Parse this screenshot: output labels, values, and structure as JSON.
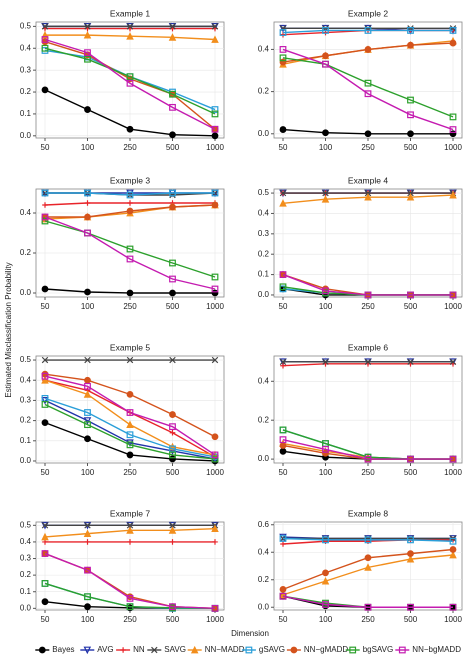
{
  "ylabel": "Estimated Misclassification Probability",
  "xlabel": "Dimension",
  "chart_data": [
    {
      "type": "line",
      "title": "Example 1",
      "categories": [
        "50",
        "100",
        "250",
        "500",
        "1000"
      ],
      "ylim": [
        -0.01,
        0.52
      ],
      "yticks": [
        {
          "value": 0,
          "label": "0.0"
        },
        0.1,
        0.2,
        0.3,
        0.4,
        0.5
      ],
      "grid": true,
      "series": [
        {
          "name": "Bayes",
          "color": "#000000",
          "marker": "circle",
          "values": [
            0.21,
            0.12,
            0.03,
            0.005,
            0
          ]
        },
        {
          "name": "AVG",
          "color": "#2233aa",
          "marker": "triangle-down",
          "values": [
            0.5,
            0.5,
            0.5,
            0.5,
            0.5
          ]
        },
        {
          "name": "NN",
          "color": "#e8242a",
          "marker": "plus",
          "values": [
            0.49,
            0.49,
            0.49,
            0.49,
            0.49
          ]
        },
        {
          "name": "SAVG",
          "color": "#444444",
          "marker": "cross",
          "values": [
            0.5,
            0.5,
            0.5,
            0.5,
            0.5
          ]
        },
        {
          "name": "NN−MADD",
          "color": "#f28e1c",
          "marker": "triangle-up",
          "values": [
            0.46,
            0.46,
            0.455,
            0.45,
            0.44
          ]
        },
        {
          "name": "gSAVG",
          "color": "#2b9fd9",
          "marker": "square",
          "values": [
            0.39,
            0.36,
            0.27,
            0.2,
            0.12
          ]
        },
        {
          "name": "NN−gMADD",
          "color": "#d4531c",
          "marker": "circle",
          "values": [
            0.43,
            0.37,
            0.26,
            0.19,
            0.03
          ]
        },
        {
          "name": "bgSAVG",
          "color": "#2ca02c",
          "marker": "square",
          "values": [
            0.4,
            0.35,
            0.27,
            0.19,
            0.1
          ]
        },
        {
          "name": "NN−bgMADD",
          "color": "#c41bb0",
          "marker": "square",
          "values": [
            0.44,
            0.38,
            0.24,
            0.13,
            0.03
          ]
        }
      ]
    },
    {
      "type": "line",
      "title": "Example 2",
      "categories": [
        "50",
        "100",
        "250",
        "500",
        "1000"
      ],
      "ylim": [
        -0.02,
        0.53
      ],
      "yticks": [
        {
          "value": 0,
          "label": "0.0"
        },
        0.2,
        0.4
      ],
      "grid": true,
      "series": [
        {
          "name": "Bayes",
          "color": "#000000",
          "marker": "circle",
          "values": [
            0.02,
            0.005,
            0,
            0,
            0
          ]
        },
        {
          "name": "AVG",
          "color": "#2233aa",
          "marker": "triangle-down",
          "values": [
            0.5,
            0.5,
            0.5,
            0.49,
            0.49
          ]
        },
        {
          "name": "NN",
          "color": "#e8242a",
          "marker": "plus",
          "values": [
            0.47,
            0.48,
            0.49,
            0.49,
            0.49
          ]
        },
        {
          "name": "SAVG",
          "color": "#444444",
          "marker": "cross",
          "values": [
            0.5,
            0.5,
            0.5,
            0.5,
            0.5
          ]
        },
        {
          "name": "NN−MADD",
          "color": "#f28e1c",
          "marker": "triangle-up",
          "values": [
            0.33,
            0.37,
            0.4,
            0.42,
            0.44
          ]
        },
        {
          "name": "gSAVG",
          "color": "#2b9fd9",
          "marker": "square",
          "values": [
            0.48,
            0.49,
            0.49,
            0.49,
            0.49
          ]
        },
        {
          "name": "NN−gMADD",
          "color": "#d4531c",
          "marker": "circle",
          "values": [
            0.34,
            0.37,
            0.4,
            0.42,
            0.43
          ]
        },
        {
          "name": "bgSAVG",
          "color": "#2ca02c",
          "marker": "square",
          "values": [
            0.36,
            0.33,
            0.24,
            0.16,
            0.08
          ]
        },
        {
          "name": "NN−bgMADD",
          "color": "#c41bb0",
          "marker": "square",
          "values": [
            0.4,
            0.33,
            0.19,
            0.09,
            0.02
          ]
        }
      ]
    },
    {
      "type": "line",
      "title": "Example 3",
      "categories": [
        "50",
        "100",
        "250",
        "500",
        "1000"
      ],
      "ylim": [
        -0.02,
        0.52
      ],
      "yticks": [
        {
          "value": 0,
          "label": "0.0"
        },
        0.2,
        0.4
      ],
      "grid": true,
      "series": [
        {
          "name": "Bayes",
          "color": "#000000",
          "marker": "circle",
          "values": [
            0.02,
            0.005,
            0,
            0,
            0
          ]
        },
        {
          "name": "AVG",
          "color": "#2233aa",
          "marker": "triangle-down",
          "values": [
            0.5,
            0.5,
            0.5,
            0.5,
            0.5
          ]
        },
        {
          "name": "NN",
          "color": "#e8242a",
          "marker": "plus",
          "values": [
            0.44,
            0.45,
            0.45,
            0.45,
            0.45
          ]
        },
        {
          "name": "SAVG",
          "color": "#444444",
          "marker": "cross",
          "values": [
            0.5,
            0.5,
            0.49,
            0.49,
            0.5
          ]
        },
        {
          "name": "NN−MADD",
          "color": "#f28e1c",
          "marker": "triangle-up",
          "values": [
            0.37,
            0.38,
            0.4,
            0.43,
            0.44
          ]
        },
        {
          "name": "gSAVG",
          "color": "#2b9fd9",
          "marker": "square",
          "values": [
            0.5,
            0.5,
            0.49,
            0.5,
            0.5
          ]
        },
        {
          "name": "NN−gMADD",
          "color": "#d4531c",
          "marker": "circle",
          "values": [
            0.38,
            0.38,
            0.41,
            0.43,
            0.44
          ]
        },
        {
          "name": "bgSAVG",
          "color": "#2ca02c",
          "marker": "square",
          "values": [
            0.36,
            0.3,
            0.22,
            0.15,
            0.08
          ]
        },
        {
          "name": "NN−bgMADD",
          "color": "#c41bb0",
          "marker": "square",
          "values": [
            0.38,
            0.3,
            0.17,
            0.07,
            0.02
          ]
        }
      ]
    },
    {
      "type": "line",
      "title": "Example 4",
      "categories": [
        "50",
        "100",
        "250",
        "500",
        "1000"
      ],
      "ylim": [
        -0.01,
        0.52
      ],
      "yticks": [
        {
          "value": 0,
          "label": "0.0"
        },
        0.1,
        0.2,
        0.3,
        0.4,
        0.5
      ],
      "grid": true,
      "series": [
        {
          "name": "Bayes",
          "color": "#000000",
          "marker": "circle",
          "values": [
            0.03,
            0,
            0,
            0,
            0
          ]
        },
        {
          "name": "AVG",
          "color": "#2233aa",
          "marker": "triangle-down",
          "values": [
            0.5,
            0.5,
            0.5,
            0.5,
            0.5
          ]
        },
        {
          "name": "NN",
          "color": "#e8242a",
          "marker": "plus",
          "values": [
            0.5,
            0.5,
            0.5,
            0.5,
            0.5
          ]
        },
        {
          "name": "SAVG",
          "color": "#444444",
          "marker": "cross",
          "values": [
            0.5,
            0.5,
            0.5,
            0.5,
            0.5
          ]
        },
        {
          "name": "NN−MADD",
          "color": "#f28e1c",
          "marker": "triangle-up",
          "values": [
            0.45,
            0.47,
            0.48,
            0.48,
            0.49
          ]
        },
        {
          "name": "gSAVG",
          "color": "#2b9fd9",
          "marker": "square",
          "values": [
            0.03,
            0.01,
            0,
            0,
            0
          ]
        },
        {
          "name": "NN−gMADD",
          "color": "#d4531c",
          "marker": "circle",
          "values": [
            0.1,
            0.03,
            0,
            0,
            0
          ]
        },
        {
          "name": "bgSAVG",
          "color": "#2ca02c",
          "marker": "square",
          "values": [
            0.04,
            0.01,
            0,
            0,
            0
          ]
        },
        {
          "name": "NN−bgMADD",
          "color": "#c41bb0",
          "marker": "square",
          "values": [
            0.1,
            0.02,
            0,
            0,
            0
          ]
        }
      ]
    },
    {
      "type": "line",
      "title": "Example 5",
      "categories": [
        "50",
        "100",
        "250",
        "500",
        "1000"
      ],
      "ylim": [
        -0.01,
        0.52
      ],
      "yticks": [
        {
          "value": 0,
          "label": "0.0"
        },
        0.1,
        0.2,
        0.3,
        0.4,
        0.5
      ],
      "grid": true,
      "series": [
        {
          "name": "Bayes",
          "color": "#000000",
          "marker": "circle",
          "values": [
            0.19,
            0.11,
            0.03,
            0.01,
            0
          ]
        },
        {
          "name": "AVG",
          "color": "#2233aa",
          "marker": "triangle-down",
          "values": [
            0.3,
            0.2,
            0.09,
            0.05,
            0.01
          ]
        },
        {
          "name": "NN",
          "color": "#e8242a",
          "marker": "plus",
          "values": [
            0.4,
            0.35,
            0.24,
            0.14,
            0.02
          ]
        },
        {
          "name": "SAVG",
          "color": "#444444",
          "marker": "cross",
          "values": [
            0.5,
            0.5,
            0.5,
            0.5,
            0.5
          ]
        },
        {
          "name": "NN−MADD",
          "color": "#f28e1c",
          "marker": "triangle-up",
          "values": [
            0.4,
            0.33,
            0.18,
            0.07,
            0.03
          ]
        },
        {
          "name": "gSAVG",
          "color": "#2b9fd9",
          "marker": "square",
          "values": [
            0.31,
            0.24,
            0.13,
            0.06,
            0.02
          ]
        },
        {
          "name": "NN−gMADD",
          "color": "#d4531c",
          "marker": "circle",
          "values": [
            0.43,
            0.4,
            0.33,
            0.23,
            0.12
          ]
        },
        {
          "name": "bgSAVG",
          "color": "#2ca02c",
          "marker": "square",
          "values": [
            0.28,
            0.18,
            0.08,
            0.03,
            0.01
          ]
        },
        {
          "name": "NN−bgMADD",
          "color": "#c41bb0",
          "marker": "square",
          "values": [
            0.42,
            0.37,
            0.24,
            0.17,
            0.03
          ]
        }
      ]
    },
    {
      "type": "line",
      "title": "Example 6",
      "categories": [
        "50",
        "100",
        "250",
        "500",
        "1000"
      ],
      "ylim": [
        -0.02,
        0.53
      ],
      "yticks": [
        {
          "value": 0,
          "label": "0.0"
        },
        0.2,
        0.4
      ],
      "grid": true,
      "series": [
        {
          "name": "Bayes",
          "color": "#000000",
          "marker": "circle",
          "values": [
            0.04,
            0.01,
            0,
            0,
            0
          ]
        },
        {
          "name": "AVG",
          "color": "#2233aa",
          "marker": "triangle-down",
          "values": [
            0.5,
            0.5,
            0.5,
            0.5,
            0.5
          ]
        },
        {
          "name": "NN",
          "color": "#e8242a",
          "marker": "plus",
          "values": [
            0.48,
            0.49,
            0.49,
            0.49,
            0.49
          ]
        },
        {
          "name": "SAVG",
          "color": "#444444",
          "marker": "cross",
          "values": [
            0.5,
            0.5,
            0.5,
            0.5,
            0.5
          ]
        },
        {
          "name": "NN−MADD",
          "color": "#f28e1c",
          "marker": "triangle-up",
          "values": [
            0.08,
            0.04,
            0.01,
            0,
            0
          ]
        },
        {
          "name": "gSAVG",
          "color": "#2b9fd9",
          "marker": "square",
          "values": [
            0.15,
            0.08,
            0.01,
            0,
            0
          ]
        },
        {
          "name": "NN−gMADD",
          "color": "#d4531c",
          "marker": "circle",
          "values": [
            0.07,
            0.03,
            0,
            0,
            0
          ]
        },
        {
          "name": "bgSAVG",
          "color": "#2ca02c",
          "marker": "square",
          "values": [
            0.15,
            0.08,
            0.01,
            0,
            0
          ]
        },
        {
          "name": "NN−bgMADD",
          "color": "#c41bb0",
          "marker": "square",
          "values": [
            0.1,
            0.05,
            0,
            0,
            0
          ]
        }
      ]
    },
    {
      "type": "line",
      "title": "Example 7",
      "categories": [
        "50",
        "100",
        "250",
        "500",
        "1000"
      ],
      "ylim": [
        -0.01,
        0.52
      ],
      "yticks": [
        {
          "value": 0,
          "label": "0.0"
        },
        0.1,
        0.2,
        0.3,
        0.4,
        0.5
      ],
      "grid": true,
      "series": [
        {
          "name": "Bayes",
          "color": "#000000",
          "marker": "circle",
          "values": [
            0.04,
            0.01,
            0.003,
            0,
            0
          ]
        },
        {
          "name": "AVG",
          "color": "#2233aa",
          "marker": "triangle-down",
          "values": [
            0.5,
            0.5,
            0.5,
            0.5,
            0.5
          ]
        },
        {
          "name": "NN",
          "color": "#e8242a",
          "marker": "plus",
          "values": [
            0.4,
            0.4,
            0.4,
            0.4,
            0.4
          ]
        },
        {
          "name": "SAVG",
          "color": "#444444",
          "marker": "cross",
          "values": [
            0.5,
            0.5,
            0.5,
            0.5,
            0.5
          ]
        },
        {
          "name": "NN−MADD",
          "color": "#f28e1c",
          "marker": "triangle-up",
          "values": [
            0.43,
            0.45,
            0.47,
            0.47,
            0.48
          ]
        },
        {
          "name": "gSAVG",
          "color": "#2b9fd9",
          "marker": "square",
          "values": [
            0.15,
            0.07,
            0.01,
            0,
            0
          ]
        },
        {
          "name": "NN−gMADD",
          "color": "#d4531c",
          "marker": "circle",
          "values": [
            0.33,
            0.23,
            0.07,
            0.01,
            0
          ]
        },
        {
          "name": "bgSAVG",
          "color": "#2ca02c",
          "marker": "square",
          "values": [
            0.15,
            0.07,
            0.01,
            0.003,
            0
          ]
        },
        {
          "name": "NN−bgMADD",
          "color": "#c41bb0",
          "marker": "square",
          "values": [
            0.33,
            0.23,
            0.06,
            0.01,
            0
          ]
        }
      ]
    },
    {
      "type": "line",
      "title": "Example 8",
      "categories": [
        "50",
        "100",
        "250",
        "500",
        "1000"
      ],
      "ylim": [
        -0.02,
        0.62
      ],
      "yticks": [
        {
          "value": 0,
          "label": "0.0"
        },
        0.2,
        0.4,
        0.6
      ],
      "grid": true,
      "series": [
        {
          "name": "Bayes",
          "color": "#000000",
          "marker": "circle",
          "values": [
            0.08,
            0.01,
            0,
            0,
            0
          ]
        },
        {
          "name": "AVG",
          "color": "#2233aa",
          "marker": "triangle-down",
          "values": [
            0.51,
            0.5,
            0.5,
            0.5,
            0.5
          ]
        },
        {
          "name": "NN",
          "color": "#e8242a",
          "marker": "plus",
          "values": [
            0.46,
            0.48,
            0.48,
            0.49,
            0.49
          ]
        },
        {
          "name": "SAVG",
          "color": "#444444",
          "marker": "cross",
          "values": [
            0.5,
            0.5,
            0.5,
            0.5,
            0.5
          ]
        },
        {
          "name": "NN−MADD",
          "color": "#f28e1c",
          "marker": "triangle-up",
          "values": [
            0.09,
            0.19,
            0.29,
            0.35,
            0.38
          ]
        },
        {
          "name": "gSAVG",
          "color": "#2b9fd9",
          "marker": "square",
          "values": [
            0.5,
            0.49,
            0.49,
            0.49,
            0.48
          ]
        },
        {
          "name": "NN−gMADD",
          "color": "#d4531c",
          "marker": "circle",
          "values": [
            0.13,
            0.25,
            0.36,
            0.39,
            0.42
          ]
        },
        {
          "name": "bgSAVG",
          "color": "#2ca02c",
          "marker": "square",
          "values": [
            0.08,
            0.03,
            0,
            0,
            0
          ]
        },
        {
          "name": "NN−bgMADD",
          "color": "#c41bb0",
          "marker": "square",
          "values": [
            0.08,
            0.02,
            0,
            0,
            0
          ]
        }
      ]
    }
  ]
}
